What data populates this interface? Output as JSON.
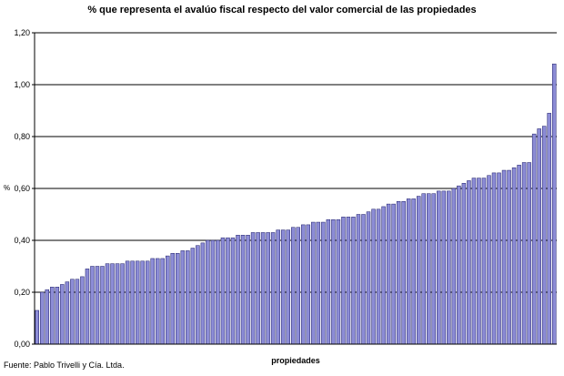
{
  "chart_data": {
    "type": "bar",
    "title": "% que representa el avalúo fiscal respecto del valor comercial de las propiedades",
    "xlabel": "propiedades",
    "ylabel": "%",
    "source": "Fuente: Pablo Trivelli y Cía. Ltda.",
    "ylim": [
      0,
      1.2
    ],
    "yticks": [
      "0,00",
      "0,20",
      "0,40",
      "0,60",
      "0,80",
      "1,00",
      "1,20"
    ],
    "grid": "horizontal",
    "bar_color": "#8c8cd6",
    "values": [
      0.13,
      0.2,
      0.21,
      0.22,
      0.22,
      0.23,
      0.24,
      0.25,
      0.25,
      0.26,
      0.29,
      0.3,
      0.3,
      0.3,
      0.31,
      0.31,
      0.31,
      0.31,
      0.32,
      0.32,
      0.32,
      0.32,
      0.32,
      0.33,
      0.33,
      0.33,
      0.34,
      0.35,
      0.35,
      0.36,
      0.36,
      0.37,
      0.38,
      0.39,
      0.4,
      0.4,
      0.4,
      0.41,
      0.41,
      0.41,
      0.42,
      0.42,
      0.42,
      0.43,
      0.43,
      0.43,
      0.43,
      0.43,
      0.44,
      0.44,
      0.44,
      0.45,
      0.45,
      0.46,
      0.46,
      0.47,
      0.47,
      0.47,
      0.48,
      0.48,
      0.48,
      0.49,
      0.49,
      0.49,
      0.5,
      0.5,
      0.51,
      0.52,
      0.52,
      0.53,
      0.54,
      0.54,
      0.55,
      0.55,
      0.56,
      0.56,
      0.57,
      0.58,
      0.58,
      0.58,
      0.59,
      0.59,
      0.59,
      0.6,
      0.61,
      0.62,
      0.63,
      0.64,
      0.64,
      0.64,
      0.65,
      0.66,
      0.66,
      0.67,
      0.67,
      0.68,
      0.69,
      0.7,
      0.7,
      0.81,
      0.83,
      0.84,
      0.89,
      1.08
    ]
  }
}
